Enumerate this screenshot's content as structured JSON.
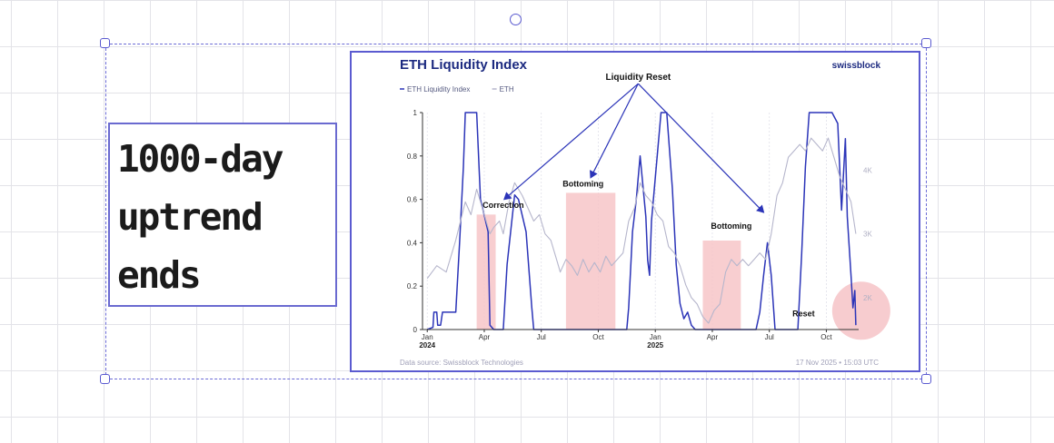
{
  "note": {
    "text": "1000-day\nuptrend\nends"
  },
  "chart_data": {
    "type": "line",
    "title": "ETH Liquidity Index",
    "brand": "swissblock",
    "legend": [
      "ETH Liquidity Index",
      "ETH"
    ],
    "legend_position": "top-left",
    "x_ticks": [
      {
        "label": "Jan",
        "year": "2024",
        "x": 0
      },
      {
        "label": "Apr",
        "year": "",
        "x": 3
      },
      {
        "label": "Jul",
        "year": "",
        "x": 6
      },
      {
        "label": "Oct",
        "year": "",
        "x": 9
      },
      {
        "label": "Jan",
        "year": "2025",
        "x": 12
      },
      {
        "label": "Apr",
        "year": "",
        "x": 15
      },
      {
        "label": "Jul",
        "year": "",
        "x": 18
      },
      {
        "label": "Oct",
        "year": "",
        "x": 21
      }
    ],
    "xlim": [
      -0.25,
      22.7
    ],
    "ylim_left": [
      0,
      1
    ],
    "y_ticks_left": [
      {
        "label": "0",
        "v": 0
      },
      {
        "label": "0.2",
        "v": 0.2
      },
      {
        "label": "0.4",
        "v": 0.4
      },
      {
        "label": "0.6",
        "v": 0.6
      },
      {
        "label": "0.8",
        "v": 0.8
      },
      {
        "label": "1",
        "v": 1
      }
    ],
    "ylim_right": [
      1500,
      4900
    ],
    "y_ticks_right": [
      {
        "label": "2K",
        "v": 2000
      },
      {
        "label": "3K",
        "v": 3000
      },
      {
        "label": "4K",
        "v": 4000
      }
    ],
    "grid": true,
    "series": [
      {
        "name": "ETH Liquidity Index",
        "axis": "left",
        "color": "#2b34b8",
        "points": [
          [
            0,
            0
          ],
          [
            0.3,
            0.01
          ],
          [
            0.35,
            0.08
          ],
          [
            0.5,
            0.08
          ],
          [
            0.55,
            0.02
          ],
          [
            0.7,
            0.02
          ],
          [
            0.8,
            0.08
          ],
          [
            1.5,
            0.08
          ],
          [
            1.7,
            0.4
          ],
          [
            1.9,
            0.75
          ],
          [
            2.0,
            1
          ],
          [
            2.6,
            1
          ],
          [
            2.8,
            0.6
          ],
          [
            3.2,
            0.45
          ],
          [
            3.3,
            0.02
          ],
          [
            3.5,
            0
          ],
          [
            4.0,
            0
          ],
          [
            4.2,
            0.3
          ],
          [
            4.6,
            0.62
          ],
          [
            4.8,
            0.6
          ],
          [
            5.2,
            0.45
          ],
          [
            5.5,
            0.1
          ],
          [
            5.6,
            0
          ],
          [
            8.3,
            0
          ],
          [
            8.8,
            0
          ],
          [
            9.2,
            0
          ],
          [
            10.5,
            0
          ],
          [
            10.6,
            0.1
          ],
          [
            10.8,
            0.45
          ],
          [
            11.0,
            0.6
          ],
          [
            11.2,
            0.8
          ],
          [
            11.5,
            0.52
          ],
          [
            11.6,
            0.32
          ],
          [
            11.7,
            0.25
          ],
          [
            11.8,
            0.5
          ],
          [
            12.1,
            0.8
          ],
          [
            12.3,
            1
          ],
          [
            12.6,
            1
          ],
          [
            12.9,
            0.65
          ],
          [
            13.1,
            0.3
          ],
          [
            13.3,
            0.12
          ],
          [
            13.5,
            0.05
          ],
          [
            13.7,
            0.08
          ],
          [
            13.9,
            0.02
          ],
          [
            14.1,
            0
          ],
          [
            17.3,
            0
          ],
          [
            17.5,
            0.08
          ],
          [
            17.7,
            0.25
          ],
          [
            17.9,
            0.4
          ],
          [
            18.1,
            0.25
          ],
          [
            18.3,
            0
          ],
          [
            19.5,
            0
          ],
          [
            19.7,
            0.35
          ],
          [
            19.9,
            0.75
          ],
          [
            20.1,
            1
          ],
          [
            21.3,
            1
          ],
          [
            21.6,
            0.95
          ],
          [
            21.8,
            0.55
          ],
          [
            22.0,
            0.88
          ],
          [
            22.1,
            0.52
          ],
          [
            22.3,
            0.25
          ],
          [
            22.4,
            0.1
          ],
          [
            22.5,
            0.18
          ],
          [
            22.55,
            0.02
          ]
        ]
      },
      {
        "name": "ETH",
        "axis": "right",
        "color": "#b6b6cc",
        "points": [
          [
            0,
            2300
          ],
          [
            0.5,
            2500
          ],
          [
            1.0,
            2400
          ],
          [
            1.5,
            2900
          ],
          [
            2.0,
            3500
          ],
          [
            2.3,
            3300
          ],
          [
            2.6,
            3700
          ],
          [
            3.0,
            3300
          ],
          [
            3.3,
            3000
          ],
          [
            3.5,
            3100
          ],
          [
            3.8,
            3200
          ],
          [
            4.0,
            3000
          ],
          [
            4.3,
            3500
          ],
          [
            4.6,
            3800
          ],
          [
            4.8,
            3700
          ],
          [
            5.0,
            3600
          ],
          [
            5.3,
            3400
          ],
          [
            5.6,
            3200
          ],
          [
            5.9,
            3300
          ],
          [
            6.2,
            3000
          ],
          [
            6.5,
            2900
          ],
          [
            6.8,
            2600
          ],
          [
            7.0,
            2400
          ],
          [
            7.3,
            2600
          ],
          [
            7.6,
            2500
          ],
          [
            7.9,
            2350
          ],
          [
            8.2,
            2600
          ],
          [
            8.5,
            2400
          ],
          [
            8.8,
            2550
          ],
          [
            9.1,
            2400
          ],
          [
            9.4,
            2650
          ],
          [
            9.7,
            2500
          ],
          [
            10.0,
            2600
          ],
          [
            10.3,
            2700
          ],
          [
            10.6,
            3200
          ],
          [
            10.9,
            3400
          ],
          [
            11.2,
            3800
          ],
          [
            11.5,
            3600
          ],
          [
            11.8,
            3500
          ],
          [
            12.1,
            3300
          ],
          [
            12.4,
            3200
          ],
          [
            12.7,
            2800
          ],
          [
            13.0,
            2700
          ],
          [
            13.3,
            2500
          ],
          [
            13.6,
            2200
          ],
          [
            13.9,
            2000
          ],
          [
            14.2,
            1900
          ],
          [
            14.5,
            1700
          ],
          [
            14.8,
            1600
          ],
          [
            15.1,
            1800
          ],
          [
            15.4,
            1900
          ],
          [
            15.7,
            2400
          ],
          [
            16.0,
            2600
          ],
          [
            16.3,
            2500
          ],
          [
            16.6,
            2600
          ],
          [
            16.9,
            2500
          ],
          [
            17.2,
            2600
          ],
          [
            17.5,
            2700
          ],
          [
            17.8,
            2600
          ],
          [
            18.1,
            3000
          ],
          [
            18.4,
            3600
          ],
          [
            18.7,
            3800
          ],
          [
            19.0,
            4200
          ],
          [
            19.3,
            4300
          ],
          [
            19.6,
            4400
          ],
          [
            19.9,
            4300
          ],
          [
            20.2,
            4500
          ],
          [
            20.5,
            4400
          ],
          [
            20.8,
            4300
          ],
          [
            21.1,
            4500
          ],
          [
            21.4,
            4200
          ],
          [
            21.7,
            3900
          ],
          [
            22.0,
            3700
          ],
          [
            22.3,
            3500
          ],
          [
            22.55,
            3000
          ]
        ]
      }
    ],
    "annotations": [
      {
        "label": "Liquidity Reset",
        "x": 11.1,
        "y": 1.15
      },
      {
        "label": "Correction",
        "x": 4.0,
        "y": 0.56
      },
      {
        "label": "Bottoming",
        "x": 8.2,
        "y": 0.66
      },
      {
        "label": "Bottoming",
        "x": 16.0,
        "y": 0.465
      },
      {
        "label": "Reset",
        "x": 19.8,
        "y": 0.06
      }
    ],
    "highlight_regions": [
      {
        "x0": 2.6,
        "x1": 3.6,
        "y1": 0.53,
        "color": "#f7c6c8"
      },
      {
        "x0": 7.3,
        "x1": 9.9,
        "y1": 0.63,
        "color": "#f7c6c8"
      },
      {
        "x0": 14.5,
        "x1": 16.5,
        "y1": 0.41,
        "color": "#f7c6c8"
      }
    ],
    "reset_marker": {
      "x": 22.55,
      "y": 0.07,
      "color": "#f6c6ca"
    },
    "footer_source": "Data source: Swissblock Technologies",
    "footer_timestamp": "17 Nov 2025 • 15:03 UTC"
  }
}
